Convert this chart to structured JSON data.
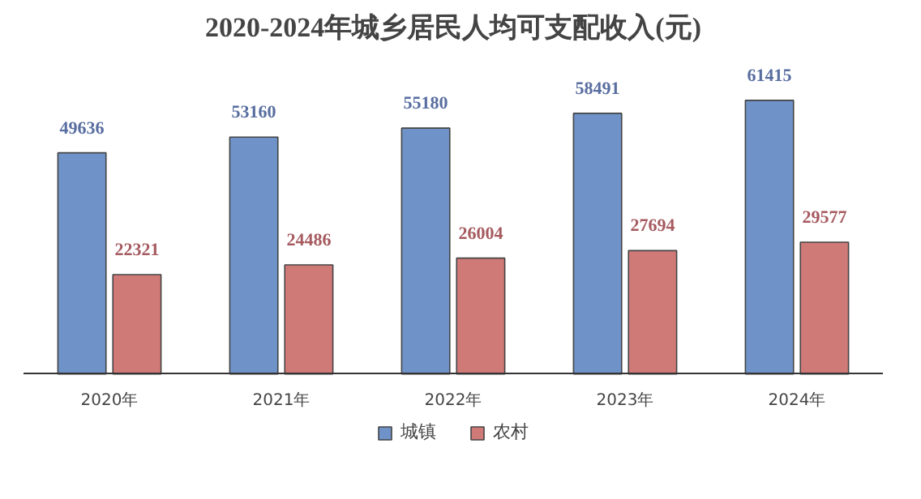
{
  "chart_data": {
    "type": "bar",
    "title": "2020-2024年城乡居民人均可支配收入(元)",
    "categories": [
      "2020年",
      "2021年",
      "2022年",
      "2023年",
      "2024年"
    ],
    "series": [
      {
        "name": "城镇",
        "color": "#6f93c8",
        "values": [
          49636,
          53160,
          55180,
          58491,
          61415
        ]
      },
      {
        "name": "农村",
        "color": "#d07a78",
        "values": [
          22321,
          24486,
          26004,
          27694,
          29577
        ]
      }
    ],
    "data_labels": true,
    "legend": "bottom"
  }
}
